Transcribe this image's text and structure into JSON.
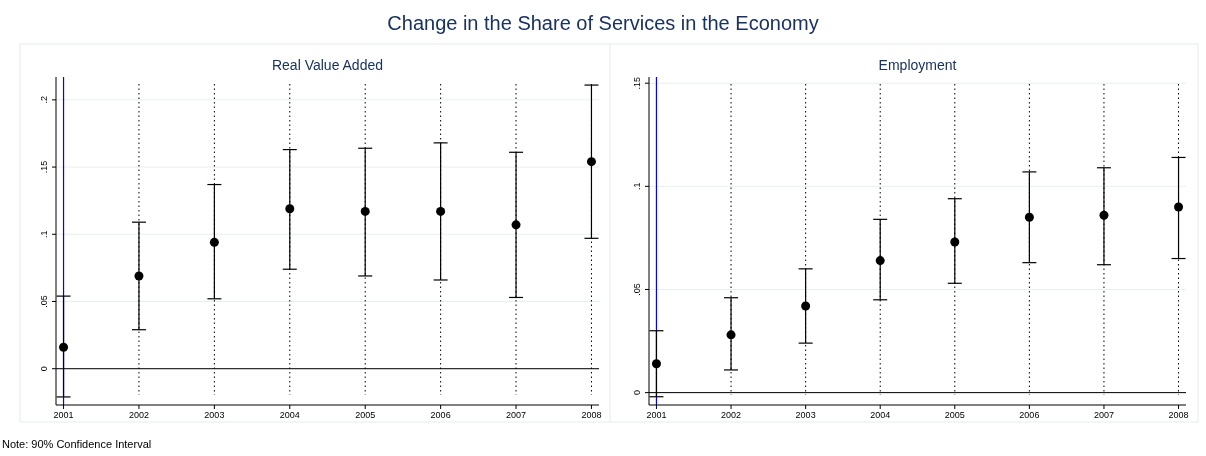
{
  "chart_data": [
    {
      "type": "other",
      "title": "Change in the Share of Services in the Economy"
    },
    {
      "type": "scatter",
      "title": "Real Value Added",
      "x": [
        2001,
        2002,
        2003,
        2004,
        2005,
        2006,
        2007,
        2008
      ],
      "values": [
        0.016,
        0.069,
        0.094,
        0.119,
        0.117,
        0.117,
        0.107,
        0.154
      ],
      "errors": [
        [
          -0.021,
          0.054
        ],
        [
          0.029,
          0.109
        ],
        [
          0.052,
          0.137
        ],
        [
          0.074,
          0.163
        ],
        [
          0.069,
          0.164
        ],
        [
          0.066,
          0.168
        ],
        [
          0.053,
          0.161
        ],
        [
          0.097,
          0.211
        ]
      ],
      "color": "#000000",
      "marker": "circle",
      "grid": true,
      "xlim": [
        2000.9,
        2008.1
      ],
      "xticks": [
        2001,
        2002,
        2003,
        2004,
        2005,
        2006,
        2007,
        2008
      ],
      "ylim": [
        -0.027,
        0.217
      ],
      "yticks": [
        {
          "value": 0,
          "label": "0"
        },
        {
          "value": 0.05,
          "label": ".05"
        },
        {
          "value": 0.1,
          "label": ".1"
        },
        {
          "value": 0.15,
          "label": ".15"
        },
        {
          "value": 0.2,
          "label": ".2"
        }
      ],
      "ref_lines": [
        {
          "axis": "x",
          "value": 2001,
          "color": "#0000ff"
        },
        {
          "axis": "y",
          "value": 0,
          "color": "#000000"
        }
      ]
    },
    {
      "type": "scatter",
      "title": "Employment",
      "x": [
        2001,
        2002,
        2003,
        2004,
        2005,
        2006,
        2007,
        2008
      ],
      "values": [
        0.014,
        0.028,
        0.042,
        0.064,
        0.073,
        0.085,
        0.086,
        0.09
      ],
      "errors": [
        [
          -0.002,
          0.03
        ],
        [
          0.011,
          0.046
        ],
        [
          0.024,
          0.06
        ],
        [
          0.045,
          0.084
        ],
        [
          0.053,
          0.094
        ],
        [
          0.063,
          0.107
        ],
        [
          0.062,
          0.109
        ],
        [
          0.065,
          0.114
        ]
      ],
      "color": "#000000",
      "marker": "circle",
      "grid": true,
      "xlim": [
        2000.9,
        2008.1
      ],
      "xticks": [
        2001,
        2002,
        2003,
        2004,
        2005,
        2006,
        2007,
        2008
      ],
      "ylim": [
        -0.006,
        0.153
      ],
      "yticks": [
        {
          "value": 0,
          "label": "0"
        },
        {
          "value": 0.05,
          "label": ".05"
        },
        {
          "value": 0.1,
          "label": ".1"
        },
        {
          "value": 0.15,
          "label": ".15"
        }
      ],
      "ref_lines": [
        {
          "axis": "x",
          "value": 2001,
          "color": "#0000ff"
        },
        {
          "axis": "y",
          "value": 0,
          "color": "#000000"
        }
      ]
    },
    {
      "type": "other",
      "annotations": [
        "Note: 90% Confidence Interval"
      ]
    }
  ]
}
